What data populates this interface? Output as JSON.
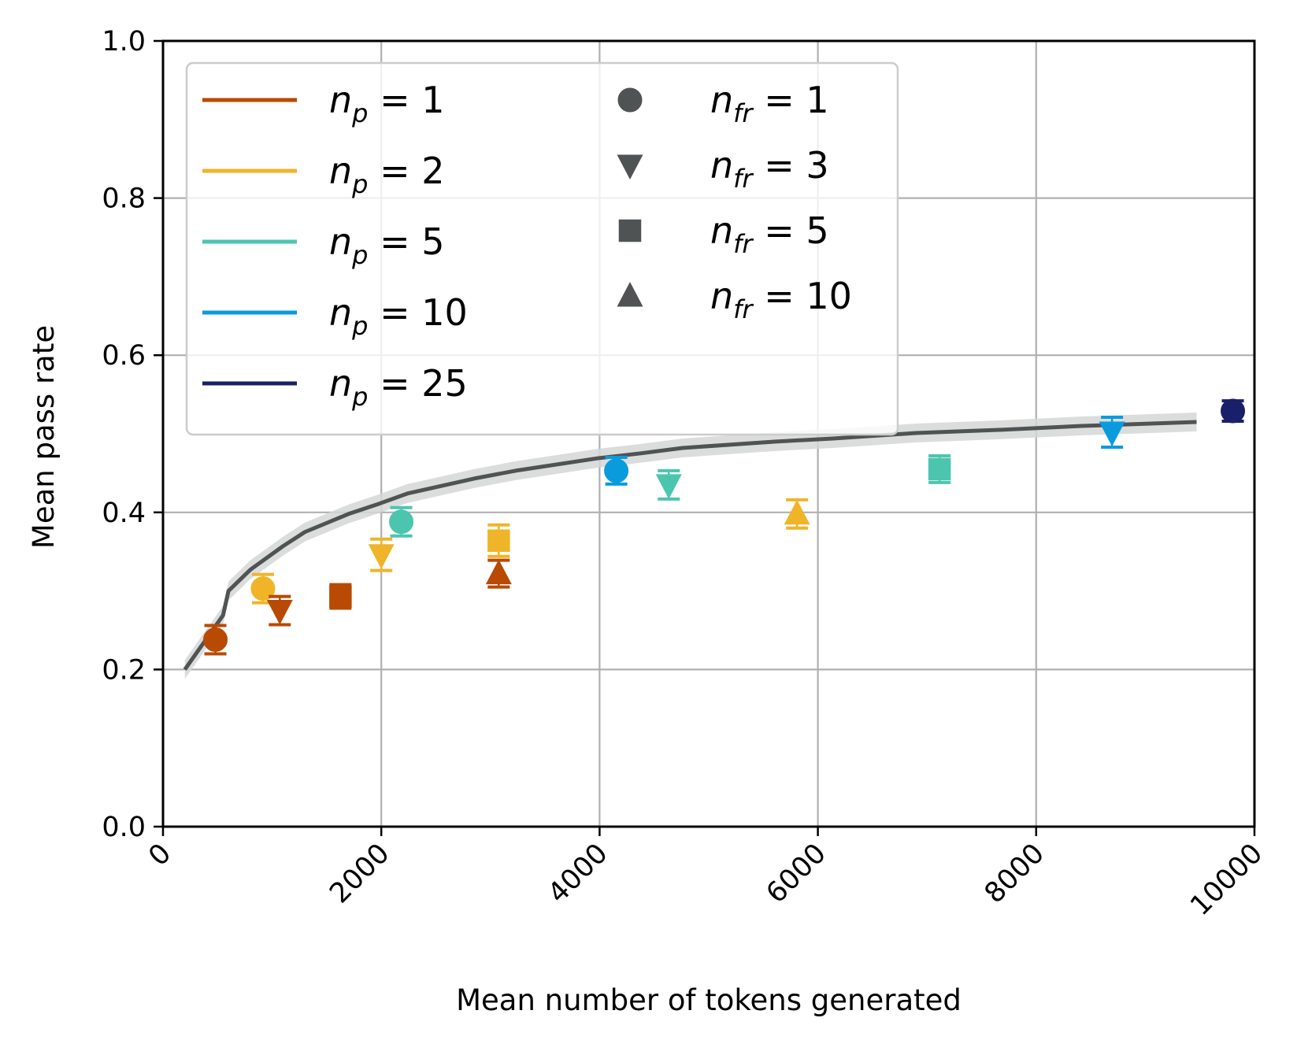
{
  "chart_data": {
    "type": "scatter",
    "title": "",
    "xlabel": "Mean number of tokens generated",
    "ylabel": "Mean pass rate",
    "xlim": [
      0,
      10000
    ],
    "ylim": [
      0.0,
      1.0
    ],
    "grid": true,
    "x_ticks": [
      0,
      2000,
      4000,
      6000,
      8000,
      10000
    ],
    "x_tick_labels": [
      "0",
      "2000",
      "4000",
      "6000",
      "8000",
      "10000"
    ],
    "y_ticks": [
      0.0,
      0.2,
      0.4,
      0.6,
      0.8,
      1.0
    ],
    "y_tick_labels": [
      "0.0",
      "0.2",
      "0.4",
      "0.6",
      "0.8",
      "1.0"
    ],
    "legend_position": "top-left",
    "color_legend": [
      {
        "name": "n_p",
        "sub": "p",
        "value": "1",
        "color": "#B84A03"
      },
      {
        "name": "n_p",
        "sub": "p",
        "value": "2",
        "color": "#F0B429"
      },
      {
        "name": "n_p",
        "sub": "p",
        "value": "5",
        "color": "#4CC5AF"
      },
      {
        "name": "n_p",
        "sub": "p",
        "value": "10",
        "color": "#0A9BDD"
      },
      {
        "name": "n_p",
        "sub": "p",
        "value": "25",
        "color": "#1A1F6B"
      }
    ],
    "marker_legend": [
      {
        "name": "n_fr",
        "sub": "fr",
        "value": "1",
        "marker": "circle"
      },
      {
        "name": "n_fr",
        "sub": "fr",
        "value": "3",
        "marker": "triangle-down"
      },
      {
        "name": "n_fr",
        "sub": "fr",
        "value": "5",
        "marker": "square"
      },
      {
        "name": "n_fr",
        "sub": "fr",
        "value": "10",
        "marker": "triangle-up"
      }
    ],
    "marker_legend_color": "#4F5354",
    "baseline_curve": {
      "color": "#4F5354",
      "band_color": "#D5D7D7",
      "x": [
        200,
        550,
        600,
        800,
        1100,
        1300,
        1700,
        1980,
        2240,
        2850,
        3230,
        3990,
        4370,
        4760,
        5600,
        6140,
        6900,
        7660,
        8420,
        9470
      ],
      "y": [
        0.2,
        0.269,
        0.3,
        0.327,
        0.357,
        0.375,
        0.398,
        0.411,
        0.424,
        0.443,
        0.453,
        0.469,
        0.475,
        0.482,
        0.49,
        0.494,
        0.501,
        0.505,
        0.51,
        0.515
      ],
      "band_halfwidth": 0.012
    },
    "points": [
      {
        "n_p": "1",
        "n_fr": "1",
        "marker": "circle",
        "color": "#B84A03",
        "x": 480,
        "y": 0.238,
        "err": 0.018
      },
      {
        "n_p": "2",
        "n_fr": "1",
        "marker": "circle",
        "color": "#F0B429",
        "x": 916,
        "y": 0.303,
        "err": 0.018
      },
      {
        "n_p": "1",
        "n_fr": "3",
        "marker": "triangle-down",
        "color": "#B84A03",
        "x": 1070,
        "y": 0.275,
        "err": 0.018
      },
      {
        "n_p": "1",
        "n_fr": "5",
        "marker": "square",
        "color": "#B84A03",
        "x": 1626,
        "y": 0.293,
        "err": 0.015
      },
      {
        "n_p": "2",
        "n_fr": "3",
        "marker": "triangle-down",
        "color": "#F0B429",
        "x": 2000,
        "y": 0.346,
        "err": 0.02
      },
      {
        "n_p": "5",
        "n_fr": "1",
        "marker": "circle",
        "color": "#4CC5AF",
        "x": 2183,
        "y": 0.388,
        "err": 0.018
      },
      {
        "n_p": "2",
        "n_fr": "5",
        "marker": "square",
        "color": "#F0B429",
        "x": 3076,
        "y": 0.364,
        "err": 0.02
      },
      {
        "n_p": "1",
        "n_fr": "10",
        "marker": "triangle-up",
        "color": "#B84A03",
        "x": 3076,
        "y": 0.322,
        "err": 0.017
      },
      {
        "n_p": "10",
        "n_fr": "1",
        "marker": "circle",
        "color": "#0A9BDD",
        "x": 4153,
        "y": 0.453,
        "err": 0.017
      },
      {
        "n_p": "5",
        "n_fr": "3",
        "marker": "triangle-down",
        "color": "#4CC5AF",
        "x": 4634,
        "y": 0.435,
        "err": 0.018
      },
      {
        "n_p": "2",
        "n_fr": "10",
        "marker": "triangle-up",
        "color": "#F0B429",
        "x": 5809,
        "y": 0.398,
        "err": 0.018
      },
      {
        "n_p": "5",
        "n_fr": "5",
        "marker": "square",
        "color": "#4CC5AF",
        "x": 7115,
        "y": 0.455,
        "err": 0.017
      },
      {
        "n_p": "10",
        "n_fr": "3",
        "marker": "triangle-down",
        "color": "#0A9BDD",
        "x": 8695,
        "y": 0.502,
        "err": 0.019
      },
      {
        "n_p": "25",
        "n_fr": "1",
        "marker": "circle",
        "color": "#1A1F6B",
        "x": 9802,
        "y": 0.529,
        "err": 0.013
      }
    ]
  }
}
